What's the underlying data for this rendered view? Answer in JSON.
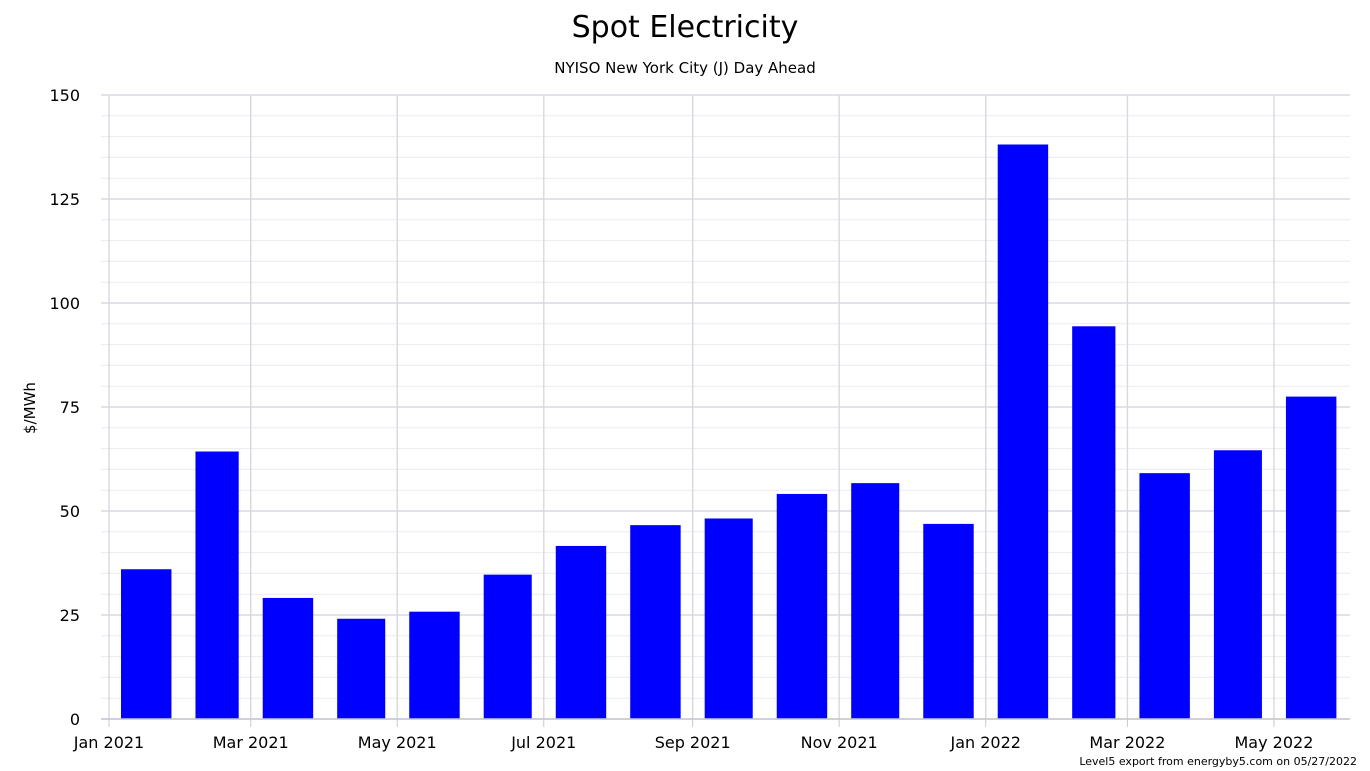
{
  "chart_data": {
    "type": "bar",
    "title": "Spot Electricity",
    "subtitle": "NYISO New York City (J) Day Ahead",
    "xlabel": "",
    "ylabel": "$/MWh",
    "ylim": [
      0,
      150
    ],
    "yticks": [
      0,
      25,
      50,
      75,
      100,
      125,
      150
    ],
    "grid": true,
    "x_start": "2021-01-01",
    "x_end": "2022-05-31",
    "xticks": [
      {
        "date": "2021-01-01",
        "label": "Jan 2021"
      },
      {
        "date": "2021-03-01",
        "label": "Mar 2021"
      },
      {
        "date": "2021-05-01",
        "label": "May 2021"
      },
      {
        "date": "2021-07-01",
        "label": "Jul 2021"
      },
      {
        "date": "2021-09-01",
        "label": "Sep 2021"
      },
      {
        "date": "2021-11-01",
        "label": "Nov 2021"
      },
      {
        "date": "2022-01-01",
        "label": "Jan 2022"
      },
      {
        "date": "2022-03-01",
        "label": "Mar 2022"
      },
      {
        "date": "2022-05-01",
        "label": "May 2022"
      }
    ],
    "categories": [
      "2021-01",
      "2021-02",
      "2021-03",
      "2021-04",
      "2021-05",
      "2021-06",
      "2021-07",
      "2021-08",
      "2021-09",
      "2021-10",
      "2021-11",
      "2021-12",
      "2022-01",
      "2022-02",
      "2022-03",
      "2022-04",
      "2022-05"
    ],
    "values": [
      36.0,
      64.3,
      29.1,
      24.1,
      25.8,
      34.7,
      41.6,
      46.6,
      48.2,
      54.1,
      56.7,
      46.9,
      138.1,
      94.4,
      59.1,
      64.6,
      77.5
    ],
    "colors": {
      "bar": "#0000ff",
      "grid_major": "#d8d8e0",
      "grid_minor": "#ececf0",
      "axis": "#c8c8d0"
    }
  },
  "credit": "Level5 export from energyby5.com on 05/27/2022"
}
